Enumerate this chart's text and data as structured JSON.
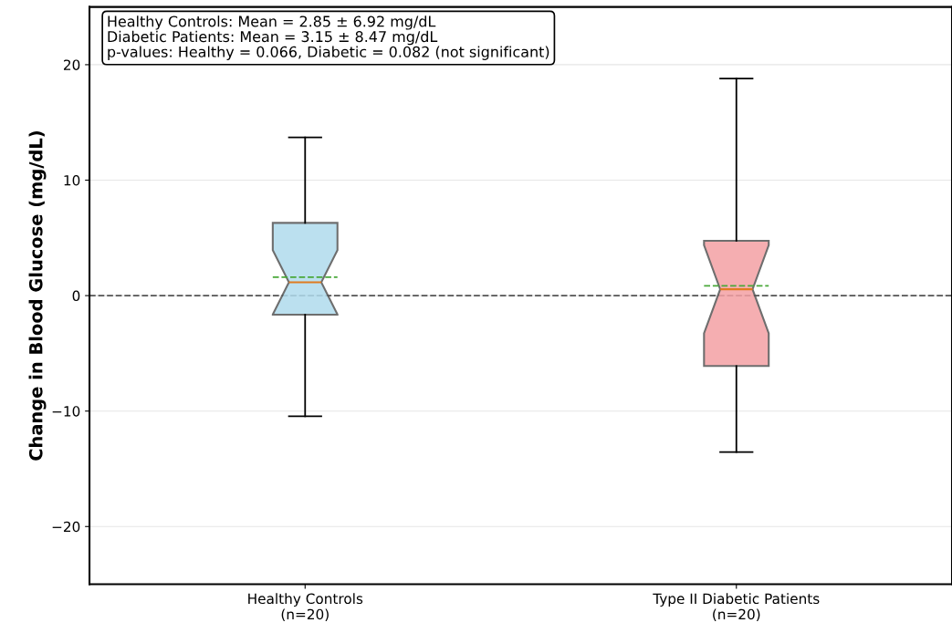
{
  "chart_data": {
    "type": "box",
    "ylabel": "Change in Blood Glucose (mg/dL)",
    "categories": [
      "Healthy Controls\n(n=20)",
      "Type II Diabetic Patients\n(n=20)"
    ],
    "boxes": [
      {
        "low": -10.45,
        "q1": -1.65,
        "median": 1.15,
        "q3": 6.3,
        "high": 13.7,
        "mean": 1.6
      },
      {
        "low": -13.55,
        "q1": -6.1,
        "median": 0.55,
        "q3": 4.75,
        "high": 18.8,
        "mean": 0.85
      }
    ],
    "colors": [
      "#b0dbed",
      "#f4a0a4"
    ],
    "ylim": [
      -25,
      25
    ],
    "yticks": [
      {
        "value": -20,
        "label": "−20"
      },
      {
        "value": -10,
        "label": "−10"
      },
      0,
      10,
      20
    ],
    "grid": "y",
    "ref_lines": [
      {
        "axis": "y",
        "value": 0,
        "color": "#555555",
        "line_style": "dashed"
      }
    ],
    "annotations": [
      "Healthy Controls: Mean = 2.85 ± 6.92 mg/dL",
      "Diabetic Patients: Mean = 3.15 ± 8.47 mg/dL",
      "p-values: Healthy = 0.066, Diabetic = 0.082 (not significant)"
    ]
  }
}
